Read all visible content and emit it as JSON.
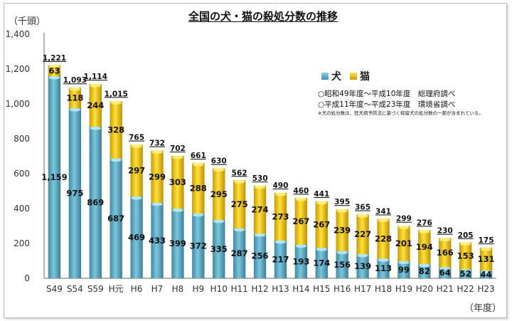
{
  "chart_data": {
    "type": "bar",
    "stacked": true,
    "title": "全国の犬・猫の殺処分数の推移",
    "ylabel": "（千頭）",
    "xlabel": "（年度）",
    "ylim": [
      0,
      1400
    ],
    "yticks": [
      0,
      200,
      400,
      600,
      800,
      1000,
      1200,
      1400
    ],
    "ytick_labels": [
      "0",
      "200",
      "400",
      "600",
      "800",
      "1,000",
      "1,200",
      "1,400"
    ],
    "grid": false,
    "legend_position": "top-right",
    "categories": [
      "S49",
      "S54",
      "S59",
      "H元",
      "H6",
      "H7",
      "H8",
      "H9",
      "H10",
      "H11",
      "H12",
      "H13",
      "H14",
      "H15",
      "H16",
      "H17",
      "H18",
      "H19",
      "H20",
      "H21",
      "H22",
      "H23"
    ],
    "series": [
      {
        "name": "犬",
        "color": "#5bafc8",
        "values": [
          1159,
          975,
          869,
          687,
          469,
          433,
          399,
          372,
          335,
          287,
          256,
          217,
          193,
          174,
          156,
          139,
          113,
          99,
          82,
          64,
          52,
          44
        ],
        "labels": [
          "1,159",
          "975",
          "869",
          "687",
          "469",
          "433",
          "399",
          "372",
          "335",
          "287",
          "256",
          "217",
          "193",
          "174",
          "156",
          "139",
          "113",
          "99",
          "82",
          "64",
          "52",
          "44"
        ]
      },
      {
        "name": "猫",
        "color": "#f2c21a",
        "values": [
          63,
          118,
          244,
          328,
          297,
          299,
          303,
          288,
          295,
          275,
          274,
          273,
          267,
          267,
          239,
          227,
          228,
          201,
          194,
          166,
          153,
          131
        ],
        "labels": [
          "63",
          "118",
          "244",
          "328",
          "297",
          "299",
          "303",
          "288",
          "295",
          "275",
          "274",
          "273",
          "267",
          "267",
          "239",
          "227",
          "228",
          "201",
          "194",
          "166",
          "153",
          "131"
        ]
      }
    ],
    "totals": [
      1221,
      1093,
      1114,
      1015,
      765,
      732,
      702,
      661,
      630,
      562,
      530,
      490,
      460,
      441,
      395,
      365,
      341,
      299,
      276,
      230,
      205,
      175
    ],
    "total_labels": [
      "1,221",
      "1,093",
      "1,114",
      "1,015",
      "765",
      "732",
      "702",
      "661",
      "630",
      "562",
      "530",
      "490",
      "460",
      "441",
      "395",
      "365",
      "341",
      "299",
      "276",
      "230",
      "205",
      "175"
    ],
    "annotations": [
      "○昭和49年度～平成10年度　総理府調べ",
      "○平成11年度～平成23年度　環境省調べ",
      "※犬の処分数は、狂犬病予防法に基づく抑留犬の処分数の一部が含まれている。"
    ]
  }
}
